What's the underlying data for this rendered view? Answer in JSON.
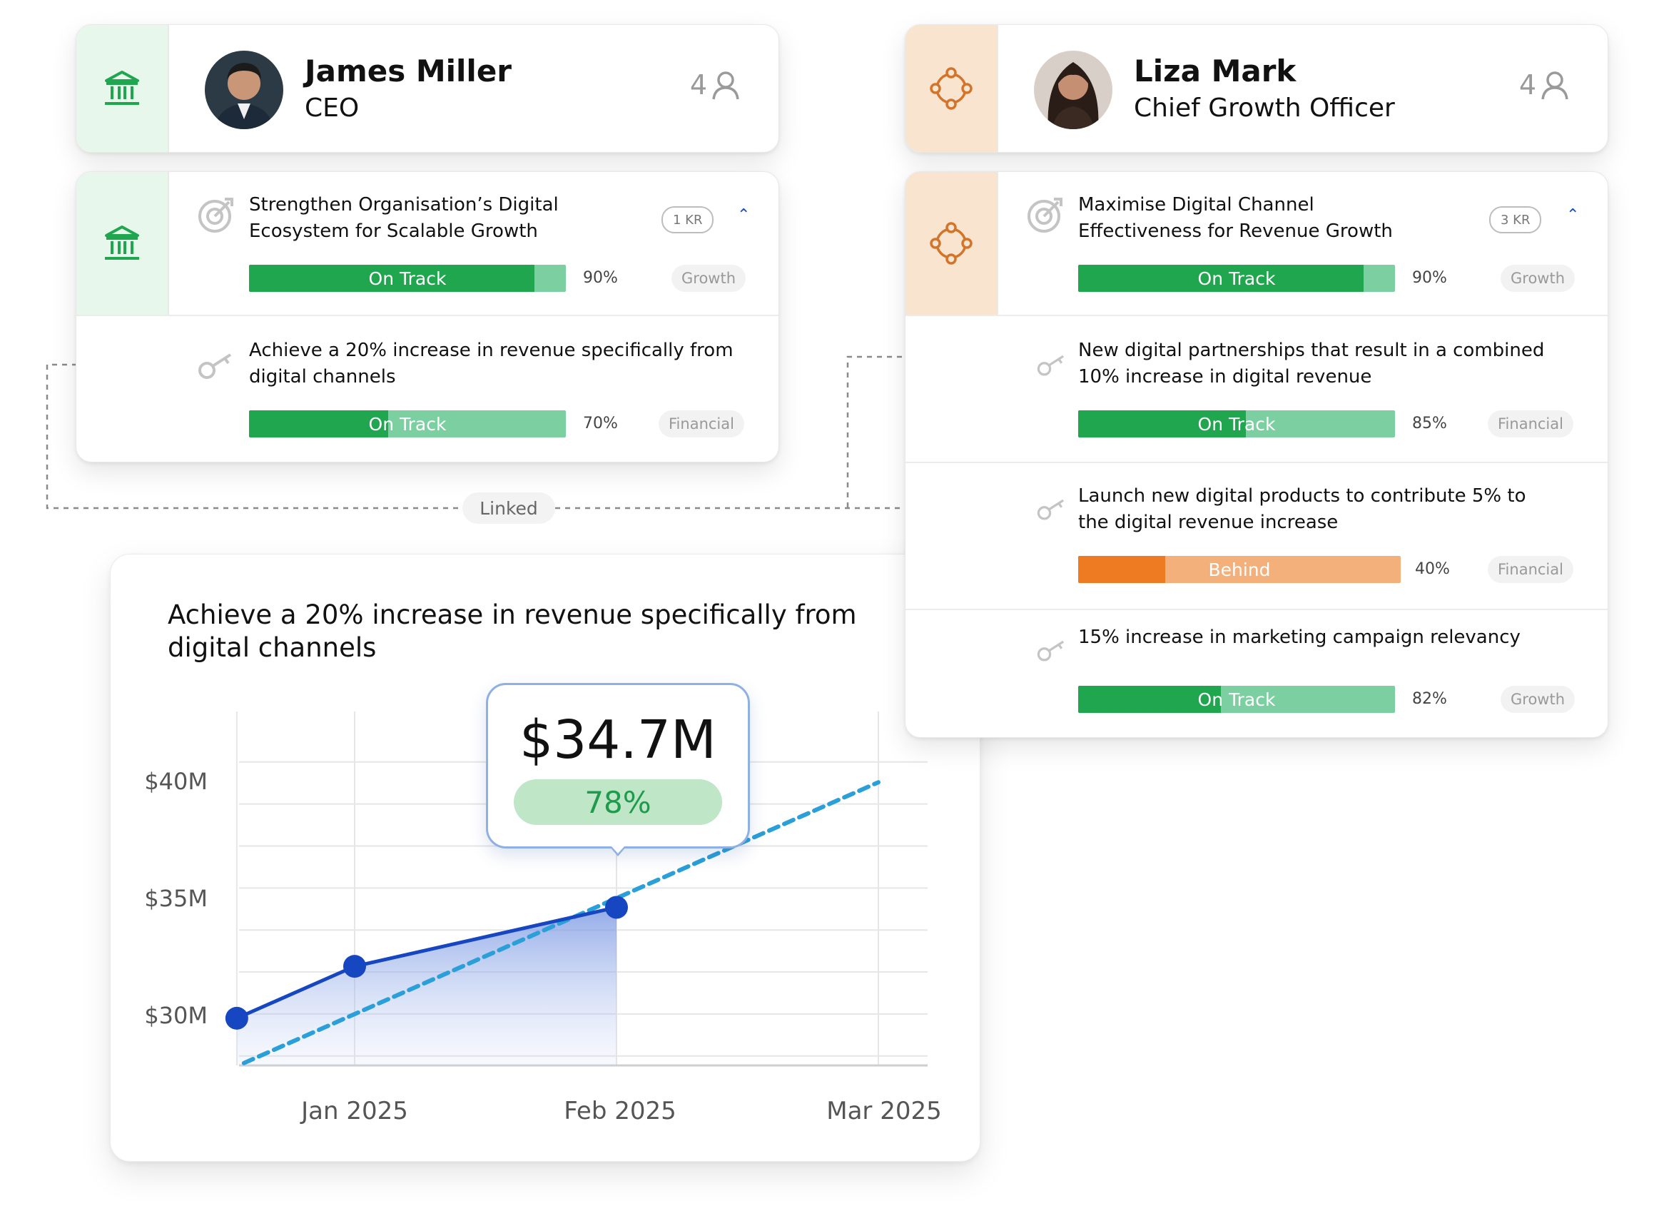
{
  "profiles": [
    {
      "name": "James Miller",
      "role": "CEO",
      "count": "4",
      "strip_icon": "bank-icon",
      "accent": "#1fa64f"
    },
    {
      "name": "Liza Mark",
      "role": "Chief Growth Officer",
      "count": "4",
      "strip_icon": "target-icon",
      "accent": "#e07a22"
    }
  ],
  "objectives": [
    {
      "title_line1": "Strengthen Organisation’s Digital",
      "title_line2": "Ecosystem for Scalable Growth",
      "kr_badge": "1 KR",
      "status": "On Track",
      "progress": 90,
      "progress_label": "90%",
      "tag": "Growth",
      "key_results": [
        {
          "title_line1": "Achieve a 20% increase in revenue specifically from",
          "title_line2": "digital channels",
          "status": "On Track",
          "progress": 70,
          "progress_label": "70%",
          "tag": "Financial"
        }
      ]
    },
    {
      "title_line1": "Maximise Digital Channel",
      "title_line2": "Effectiveness for Revenue Growth",
      "kr_badge": "3 KR",
      "status": "On Track",
      "progress": 90,
      "progress_label": "90%",
      "tag": "Growth",
      "key_results": [
        {
          "title_line1": "New digital partnerships that result in a combined",
          "title_line2": "10% increase in digital revenue",
          "status": "On Track",
          "progress": 85,
          "progress_label": "85%",
          "tag": "Financial"
        },
        {
          "title_line1": "Launch new digital products to contribute 5% to",
          "title_line2": "the digital revenue increase",
          "status": "Behind",
          "progress": 40,
          "progress_label": "40%",
          "tag": "Financial"
        },
        {
          "title_line1": "15% increase in marketing campaign relevancy",
          "title_line2": "",
          "status": "On Track",
          "progress": 82,
          "progress_label": "82%",
          "tag": "Growth"
        }
      ]
    }
  ],
  "linked_label": "Linked",
  "colors": {
    "on_track": "#1fa64f",
    "behind": "#ee7a22",
    "line": "#1646c0",
    "target": "#2a9fd8"
  },
  "chart_data": {
    "type": "line",
    "title": "Achieve a 20% increase in revenue specifically from digital channels",
    "title_line1": "Achieve a 20% increase in revenue specifically from",
    "title_line2": "digital channels",
    "x_ticks": [
      "Jan 2025",
      "Feb 2025",
      "Mar 2025"
    ],
    "y_ticks": [
      "$40M",
      "$35M",
      "$30M"
    ],
    "ylim": [
      28,
      43
    ],
    "series": [
      {
        "points": [
          [
            0.55,
            30.0
          ],
          [
            1.0,
            32.2
          ],
          [
            2.0,
            34.7
          ]
        ],
        "style": "solid"
      },
      {
        "points": [
          [
            0.55,
            28.1
          ],
          [
            3.0,
            40.0
          ]
        ],
        "style": "dashed"
      }
    ],
    "tooltip": {
      "value": "$34.7M",
      "percent": "78%"
    },
    "grid": true
  }
}
